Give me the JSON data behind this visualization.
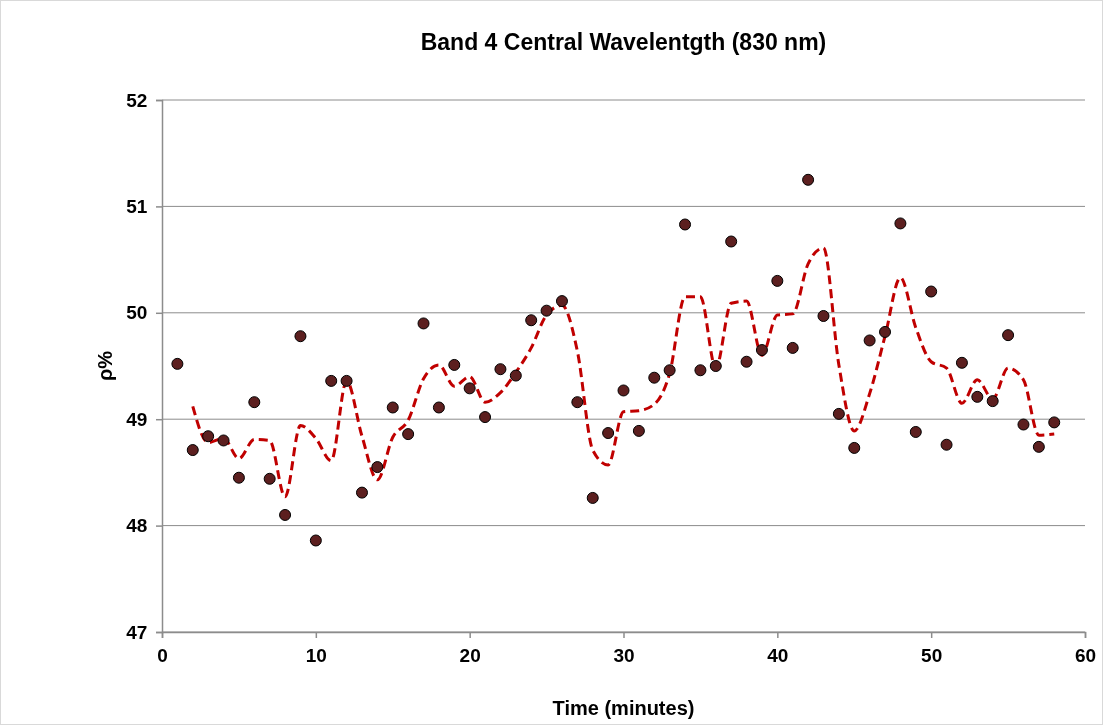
{
  "chart_data": {
    "type": "scatter",
    "title": "Band 4 Central Wavelentgth (830 nm)",
    "xlabel": "Time (minutes)",
    "ylabel": "ρ%",
    "xlim": [
      0,
      60
    ],
    "xticks": [
      0,
      10,
      20,
      30,
      40,
      50,
      60
    ],
    "ylim": [
      47,
      52
    ],
    "yticks": [
      47,
      48,
      49,
      50,
      51,
      52
    ],
    "grid": "y",
    "series": [
      {
        "color": "#5c1f1f",
        "marker": "circle",
        "x": [
          1,
          2,
          3,
          4,
          5,
          6,
          7,
          8,
          9,
          10,
          11,
          12,
          13,
          14,
          15,
          16,
          17,
          18,
          19,
          20,
          21,
          22,
          23,
          24,
          25,
          26,
          27,
          28,
          29,
          30,
          31,
          32,
          33,
          34,
          35,
          36,
          37,
          38,
          39,
          40,
          41,
          42,
          43,
          44,
          45,
          46,
          47,
          48,
          49,
          50,
          51,
          52,
          53,
          54,
          55,
          56,
          57,
          58
        ],
        "values": [
          49.52,
          48.71,
          48.84,
          48.8,
          48.45,
          49.16,
          48.44,
          48.1,
          49.78,
          47.86,
          49.36,
          49.36,
          48.31,
          48.55,
          49.11,
          48.86,
          49.9,
          49.11,
          49.51,
          49.29,
          49.02,
          49.47,
          49.41,
          49.93,
          50.02,
          50.11,
          49.16,
          48.26,
          48.87,
          49.27,
          48.89,
          49.39,
          49.46,
          50.83,
          49.46,
          49.5,
          50.67,
          49.54,
          49.65,
          50.3,
          49.67,
          51.25,
          49.97,
          49.05,
          48.73,
          49.74,
          49.82,
          50.84,
          48.88,
          50.2,
          48.76,
          49.53,
          49.21,
          49.17,
          49.79,
          48.95,
          48.74,
          48.97
        ]
      },
      {
        "type": "line",
        "color": "#c00000",
        "marker": "none",
        "line_style": "dashed",
        "x": [
          2,
          3,
          4,
          5,
          6,
          7,
          8,
          9,
          10,
          11,
          12,
          13,
          14,
          15,
          16,
          17,
          18,
          19,
          20,
          21,
          22,
          23,
          24,
          25,
          26,
          27,
          28,
          29,
          30,
          31,
          32,
          33,
          34,
          35,
          36,
          37,
          38,
          39,
          40,
          41,
          42,
          43,
          44,
          45,
          46,
          47,
          48,
          49,
          50,
          51,
          52,
          53,
          54,
          55,
          56,
          57,
          58
        ],
        "values": [
          49.12,
          48.78,
          48.82,
          48.63,
          48.81,
          48.8,
          48.27,
          48.94,
          48.82,
          48.61,
          49.36,
          48.84,
          48.43,
          48.83,
          48.99,
          49.38,
          49.51,
          49.31,
          49.4,
          49.16,
          49.25,
          49.44,
          49.67,
          49.98,
          50.07,
          49.64,
          48.71,
          48.57,
          49.07,
          49.08,
          49.14,
          49.43,
          50.15,
          50.15,
          49.48,
          50.09,
          50.11,
          49.6,
          49.98,
          49.99,
          50.46,
          50.61,
          49.51,
          48.89,
          49.24,
          49.78,
          50.33,
          49.86,
          49.54,
          49.48,
          49.15,
          49.37,
          49.19,
          49.48,
          49.37,
          48.85,
          48.86
        ]
      }
    ]
  }
}
